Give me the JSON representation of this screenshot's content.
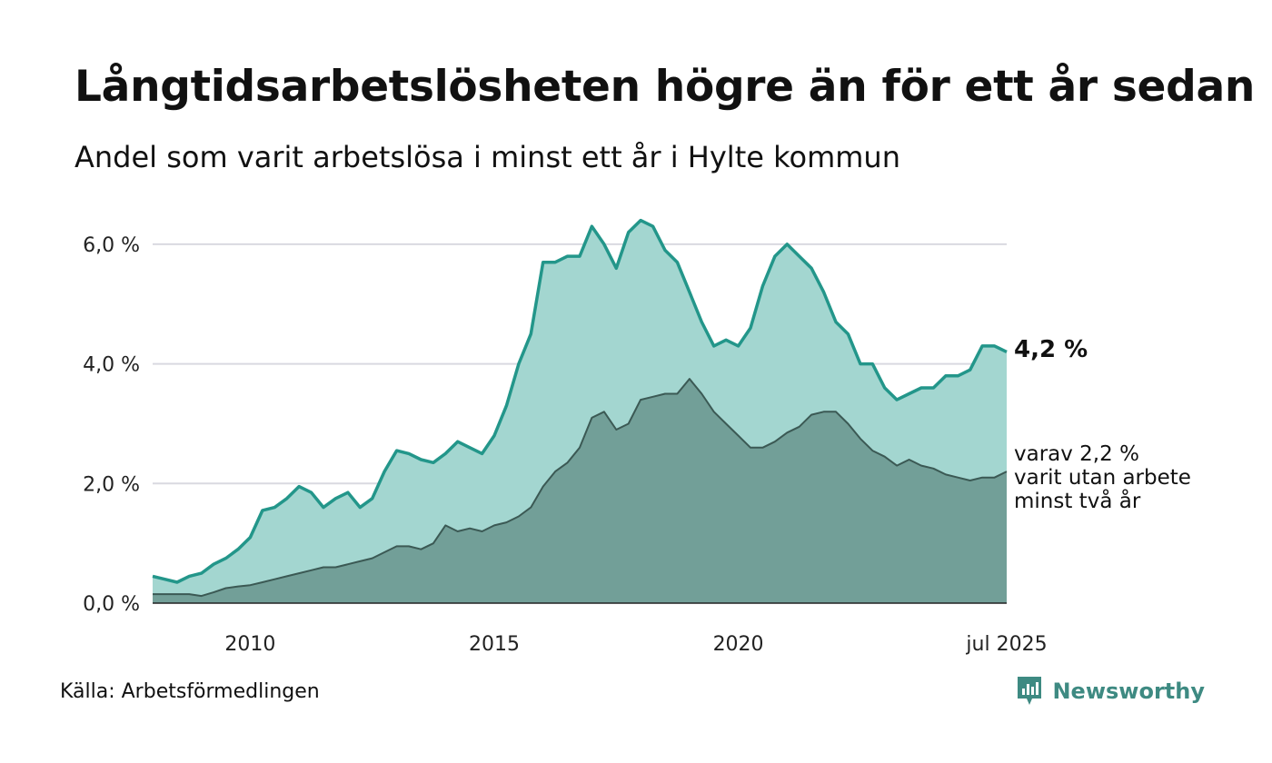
{
  "header": {
    "title": "Långtidsarbetslösheten högre än för ett år sedan",
    "subtitle": "Andel som varit arbetslösa i minst ett år i Hylte kommun"
  },
  "footer": {
    "source": "Källa: Arbetsförmedlingen",
    "brand": "Newsworthy"
  },
  "colors": {
    "main_line": "#23968a",
    "main_fill": "#a3d6d0",
    "sub_fill": "#729f98",
    "sub_line": "#3b5954",
    "grid": "#d9d9e0"
  },
  "chart_data": {
    "type": "area",
    "y_unit": "%",
    "ylim": [
      0,
      6.5
    ],
    "y_ticks": [
      0,
      2,
      4,
      6
    ],
    "y_tick_labels": [
      "0,0 %",
      "2,0 %",
      "4,0 %",
      "6,0 %"
    ],
    "x_ticks": [
      "2010",
      "2015",
      "2020",
      "jul 2025"
    ],
    "grid": true,
    "end_label": "4,2 %",
    "annotation_lines": [
      "varav 2,2 %",
      "varit utan arbete",
      "minst två år"
    ],
    "series": [
      {
        "key": "minst_ett_ar",
        "x": [
          "2008-01",
          "2008-04",
          "2008-07",
          "2008-10",
          "2009-01",
          "2009-04",
          "2009-07",
          "2009-10",
          "2010-01",
          "2010-04",
          "2010-07",
          "2010-10",
          "2011-01",
          "2011-04",
          "2011-07",
          "2011-10",
          "2012-01",
          "2012-04",
          "2012-07",
          "2012-10",
          "2013-01",
          "2013-04",
          "2013-07",
          "2013-10",
          "2014-01",
          "2014-04",
          "2014-07",
          "2014-10",
          "2015-01",
          "2015-04",
          "2015-07",
          "2015-10",
          "2016-01",
          "2016-04",
          "2016-07",
          "2016-10",
          "2017-01",
          "2017-04",
          "2017-07",
          "2017-10",
          "2018-01",
          "2018-04",
          "2018-07",
          "2018-10",
          "2019-01",
          "2019-04",
          "2019-07",
          "2019-10",
          "2020-01",
          "2020-04",
          "2020-07",
          "2020-10",
          "2021-01",
          "2021-04",
          "2021-07",
          "2021-10",
          "2022-01",
          "2022-04",
          "2022-07",
          "2022-10",
          "2023-01",
          "2023-04",
          "2023-07",
          "2023-10",
          "2024-01",
          "2024-04",
          "2024-07",
          "2024-10",
          "2025-01",
          "2025-04",
          "2025-07"
        ],
        "values": [
          0.45,
          0.4,
          0.35,
          0.45,
          0.5,
          0.65,
          0.75,
          0.9,
          1.1,
          1.55,
          1.6,
          1.75,
          1.95,
          1.85,
          1.6,
          1.75,
          1.85,
          1.6,
          1.75,
          2.2,
          2.55,
          2.5,
          2.4,
          2.35,
          2.5,
          2.7,
          2.6,
          2.5,
          2.8,
          3.3,
          4.0,
          4.5,
          5.7,
          5.7,
          5.8,
          5.8,
          6.3,
          6.0,
          5.6,
          6.2,
          6.4,
          6.3,
          5.9,
          5.7,
          5.2,
          4.7,
          4.3,
          4.4,
          4.3,
          4.6,
          5.3,
          5.8,
          6.0,
          5.8,
          5.6,
          5.2,
          4.7,
          4.5,
          4.0,
          4.0,
          3.6,
          3.4,
          3.5,
          3.6,
          3.6,
          3.8,
          3.8,
          3.9,
          4.3,
          4.3,
          4.2
        ]
      },
      {
        "key": "minst_tva_ar",
        "x": [
          "2008-01",
          "2008-04",
          "2008-07",
          "2008-10",
          "2009-01",
          "2009-04",
          "2009-07",
          "2009-10",
          "2010-01",
          "2010-04",
          "2010-07",
          "2010-10",
          "2011-01",
          "2011-04",
          "2011-07",
          "2011-10",
          "2012-01",
          "2012-04",
          "2012-07",
          "2012-10",
          "2013-01",
          "2013-04",
          "2013-07",
          "2013-10",
          "2014-01",
          "2014-04",
          "2014-07",
          "2014-10",
          "2015-01",
          "2015-04",
          "2015-07",
          "2015-10",
          "2016-01",
          "2016-04",
          "2016-07",
          "2016-10",
          "2017-01",
          "2017-04",
          "2017-07",
          "2017-10",
          "2018-01",
          "2018-04",
          "2018-07",
          "2018-10",
          "2019-01",
          "2019-04",
          "2019-07",
          "2019-10",
          "2020-01",
          "2020-04",
          "2020-07",
          "2020-10",
          "2021-01",
          "2021-04",
          "2021-07",
          "2021-10",
          "2022-01",
          "2022-04",
          "2022-07",
          "2022-10",
          "2023-01",
          "2023-04",
          "2023-07",
          "2023-10",
          "2024-01",
          "2024-04",
          "2024-07",
          "2024-10",
          "2025-01",
          "2025-04",
          "2025-07"
        ],
        "values": [
          0.15,
          0.15,
          0.15,
          0.15,
          0.12,
          0.18,
          0.25,
          0.28,
          0.3,
          0.35,
          0.4,
          0.45,
          0.5,
          0.55,
          0.6,
          0.6,
          0.65,
          0.7,
          0.75,
          0.85,
          0.95,
          0.95,
          0.9,
          1.0,
          1.3,
          1.2,
          1.25,
          1.2,
          1.3,
          1.35,
          1.45,
          1.6,
          1.95,
          2.2,
          2.35,
          2.6,
          3.1,
          3.2,
          2.9,
          3.0,
          3.4,
          3.45,
          3.5,
          3.5,
          3.75,
          3.5,
          3.2,
          3.0,
          2.8,
          2.6,
          2.6,
          2.7,
          2.85,
          2.95,
          3.15,
          3.2,
          3.2,
          3.0,
          2.75,
          2.55,
          2.45,
          2.3,
          2.4,
          2.3,
          2.25,
          2.15,
          2.1,
          2.05,
          2.1,
          2.1,
          2.2
        ]
      }
    ]
  }
}
